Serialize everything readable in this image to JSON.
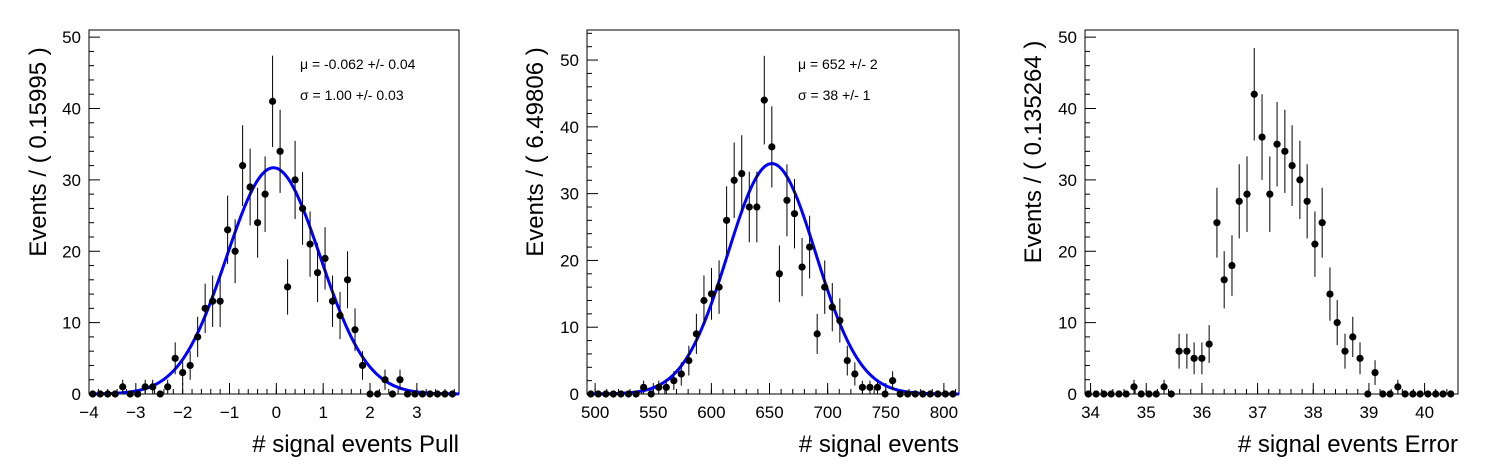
{
  "chart_data": [
    {
      "type": "scatter",
      "xlabel": "# signal events Pull",
      "ylabel": "Events / ( 0.15995 )",
      "xlim": [
        -4.0,
        3.9
      ],
      "ylim": [
        0,
        51
      ],
      "xticks": [
        -4,
        -3,
        -2,
        -1,
        0,
        1,
        2,
        3
      ],
      "xtick_labels": [
        "−4",
        "−3",
        "−2",
        "−1",
        "0",
        "1",
        "2",
        "3"
      ],
      "yticks": [
        0,
        10,
        20,
        30,
        40,
        50
      ],
      "ytick_labels": [
        "0",
        "10",
        "20",
        "30",
        "40",
        "50"
      ],
      "grid": false,
      "legend": null,
      "annotations": [
        "μ = -0.062 +/- 0.04",
        "σ =  1.00 +/- 0.03"
      ],
      "fit": {
        "type": "gaussian",
        "mean": -0.062,
        "sigma": 1.0,
        "amplitude": 31.7,
        "color": "#0000ff"
      },
      "x": [
        -3.92,
        -3.76,
        -3.6,
        -3.44,
        -3.28,
        -3.12,
        -2.96,
        -2.8,
        -2.64,
        -2.48,
        -2.32,
        -2.16,
        -2.0,
        -1.84,
        -1.68,
        -1.52,
        -1.36,
        -1.2,
        -1.04,
        -0.88,
        -0.72,
        -0.56,
        -0.4,
        -0.24,
        -0.08,
        0.08,
        0.24,
        0.4,
        0.56,
        0.72,
        0.88,
        1.04,
        1.2,
        1.36,
        1.52,
        1.68,
        1.84,
        2.0,
        2.16,
        2.32,
        2.48,
        2.64,
        2.8,
        2.96,
        3.12,
        3.28,
        3.44,
        3.6,
        3.76
      ],
      "values": [
        0,
        0,
        0,
        0,
        1,
        0,
        0,
        1,
        1,
        0,
        1,
        5,
        3,
        4,
        8,
        12,
        13,
        13,
        23,
        20,
        32,
        29,
        24,
        28,
        41,
        34,
        15,
        30,
        26,
        21,
        17,
        19,
        13,
        11,
        16,
        9,
        4,
        0,
        0,
        2,
        0,
        2,
        0,
        0,
        0,
        0,
        0,
        0,
        0
      ]
    },
    {
      "type": "scatter",
      "xlabel": "# signal events",
      "ylabel": "Events / ( 6.49806 )",
      "xlim": [
        493,
        813
      ],
      "ylim": [
        0,
        54.5
      ],
      "xticks": [
        500,
        550,
        600,
        650,
        700,
        750,
        800
      ],
      "xtick_labels": [
        "500",
        "550",
        "600",
        "650",
        "700",
        "750",
        "800"
      ],
      "yticks": [
        0,
        10,
        20,
        30,
        40,
        50
      ],
      "ytick_labels": [
        "0",
        "10",
        "20",
        "30",
        "40",
        "50"
      ],
      "grid": false,
      "legend": null,
      "annotations": [
        "μ =  652 +/- 2",
        "σ =  38 +/- 1"
      ],
      "fit": {
        "type": "gaussian",
        "mean": 652,
        "sigma": 38,
        "amplitude": 34.5,
        "color": "#0000ff"
      },
      "x": [
        496.3,
        502.7,
        509.2,
        515.7,
        522.2,
        528.7,
        535.2,
        541.7,
        548.2,
        554.7,
        561.2,
        567.7,
        574.1,
        580.6,
        587.1,
        593.6,
        600.1,
        606.6,
        613.1,
        619.6,
        626.1,
        632.6,
        639.1,
        645.5,
        652.0,
        658.5,
        665.0,
        671.5,
        678.0,
        684.5,
        691.0,
        697.5,
        704.0,
        710.5,
        716.9,
        723.4,
        729.9,
        736.4,
        742.9,
        749.4,
        755.9,
        762.4,
        768.9,
        775.4,
        781.9,
        788.3,
        794.8,
        801.3,
        807.8
      ],
      "values": [
        0,
        0,
        0,
        0,
        0,
        0,
        0,
        1,
        0,
        1,
        1,
        2,
        3,
        5,
        9,
        14,
        15,
        16,
        26,
        32,
        33,
        28,
        28,
        44,
        37,
        18,
        29,
        27,
        19,
        22,
        9,
        16,
        13,
        11,
        5,
        3,
        1,
        1,
        1,
        0,
        2,
        0,
        0,
        0,
        0,
        0,
        0,
        0,
        0
      ]
    },
    {
      "type": "scatter",
      "xlabel": "# signal events Error",
      "ylabel": "Events / ( 0.135264 )",
      "xlim": [
        33.9,
        40.6
      ],
      "ylim": [
        0,
        51
      ],
      "xticks": [
        34,
        35,
        36,
        37,
        38,
        39,
        40
      ],
      "xtick_labels": [
        "34",
        "35",
        "36",
        "37",
        "38",
        "39",
        "40"
      ],
      "yticks": [
        0,
        10,
        20,
        30,
        40,
        50
      ],
      "ytick_labels": [
        "0",
        "10",
        "20",
        "30",
        "40",
        "50"
      ],
      "grid": false,
      "legend": null,
      "x": [
        33.96,
        34.1,
        34.24,
        34.37,
        34.51,
        34.64,
        34.78,
        34.91,
        35.05,
        35.18,
        35.32,
        35.45,
        35.59,
        35.73,
        35.86,
        36.0,
        36.13,
        36.27,
        36.4,
        36.54,
        36.67,
        36.81,
        36.94,
        37.08,
        37.22,
        37.35,
        37.49,
        37.62,
        37.76,
        37.89,
        38.03,
        38.16,
        38.3,
        38.43,
        38.57,
        38.71,
        38.84,
        38.98,
        39.11,
        39.25,
        39.38,
        39.52,
        39.65,
        39.79,
        39.92,
        40.06,
        40.2,
        40.33,
        40.47
      ],
      "values": [
        0,
        0,
        0,
        0,
        0,
        0,
        1,
        0,
        0,
        0,
        1,
        0,
        6,
        6,
        5,
        5,
        7,
        24,
        16,
        18,
        27,
        28,
        42,
        36,
        28,
        35,
        34,
        32,
        30,
        27,
        21,
        24,
        14,
        10,
        6,
        8,
        5,
        0,
        3,
        0,
        0,
        1,
        0,
        0,
        0,
        0,
        0,
        0,
        0
      ]
    }
  ],
  "colors": {
    "points": "#000000",
    "fit": "#0000ff",
    "frame": "#000000",
    "background": "#ffffff"
  }
}
